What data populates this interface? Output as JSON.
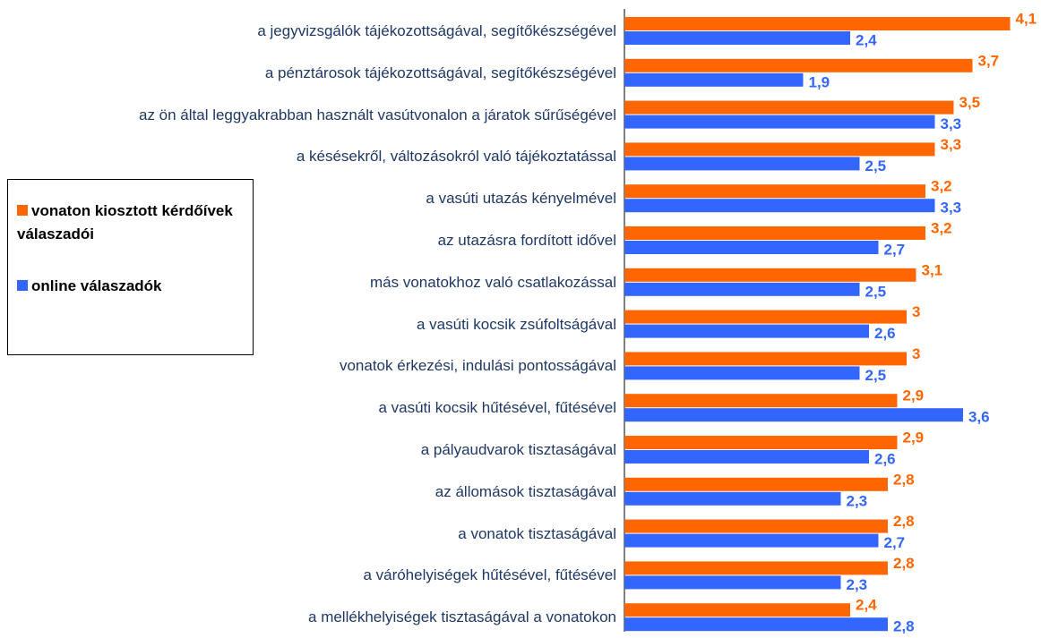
{
  "chart_data": {
    "type": "barh",
    "categories": [
      "a jegyvizsgálók tájékozottságával, segítőkészségével",
      "a pénztárosok tájékozottságával, segítőkészségével",
      "az ön által leggyakrabban használt vasútvonalon a járatok sűrűségével",
      "a késésekről, változásokról való tájékoztatással",
      "a vasúti utazás kényelmével",
      "az utazásra fordított idővel",
      "más vonatokhoz való csatlakozással",
      "a vasúti kocsik zsúfoltságával",
      "vonatok érkezési, indulási pontosságával",
      "a vasúti kocsik hűtésével, fűtésével",
      "a pályaudvarok tisztaságával",
      "az állomások tisztaságával",
      "a vonatok tisztaságával",
      "a váróhelyiségek hűtésével, fűtésével",
      "a mellékhelyiségek tisztaságával a vonatokon"
    ],
    "series": [
      {
        "name": "vonaton kiosztott kérdőívek válaszadói",
        "color": "#ff6600",
        "values": [
          4.1,
          3.7,
          3.5,
          3.3,
          3.2,
          3.2,
          3.1,
          3,
          3,
          2.9,
          2.9,
          2.8,
          2.8,
          2.8,
          2.4
        ],
        "value_labels": [
          "4,1",
          "3,7",
          "3,5",
          "3,3",
          "3,2",
          "3,2",
          "3,1",
          "3",
          "3",
          "2,9",
          "2,9",
          "2,8",
          "2,8",
          "2,8",
          "2,4"
        ]
      },
      {
        "name": "online válaszadók",
        "color": "#3366ff",
        "values": [
          2.4,
          1.9,
          3.3,
          2.5,
          3.3,
          2.7,
          2.5,
          2.6,
          2.5,
          3.6,
          2.6,
          2.3,
          2.7,
          2.3,
          2.8
        ],
        "value_labels": [
          "2,4",
          "1,9",
          "3,3",
          "2,5",
          "3,3",
          "2,7",
          "2,5",
          "2,6",
          "2,5",
          "3,6",
          "2,6",
          "2,3",
          "2,7",
          "2,3",
          "2,8"
        ]
      }
    ],
    "xlim": [
      0,
      4.4
    ]
  }
}
